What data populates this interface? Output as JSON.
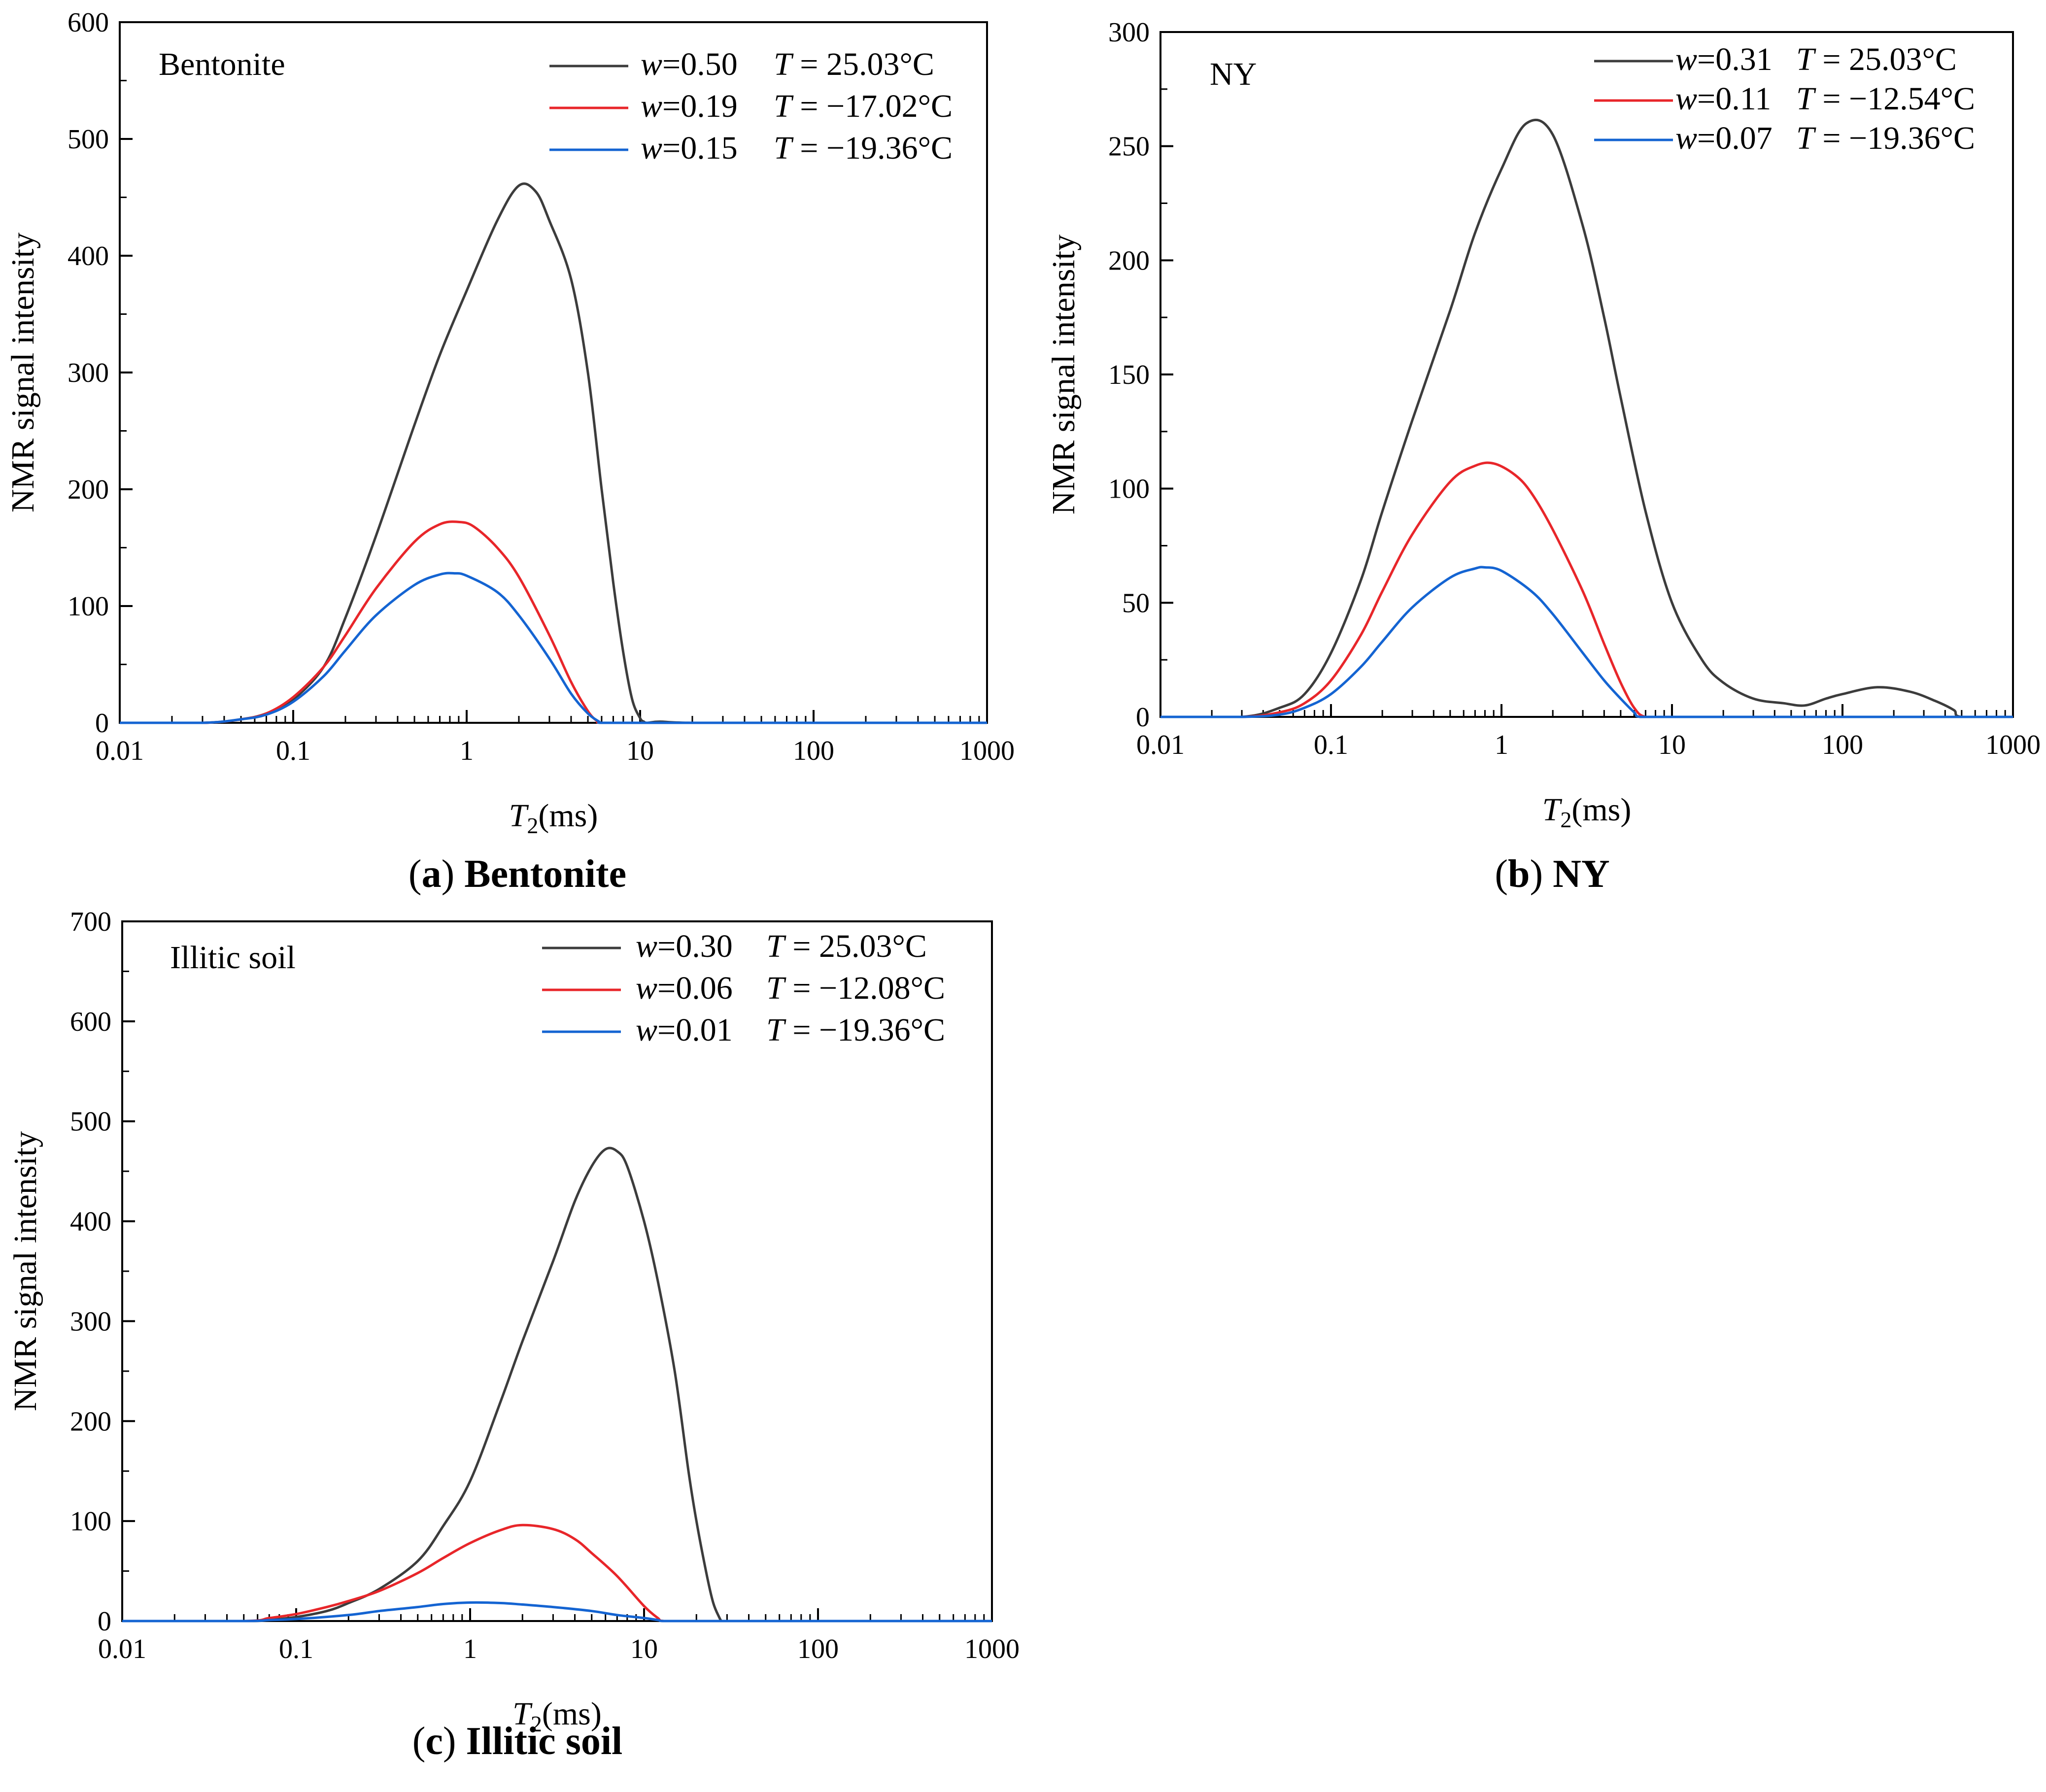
{
  "colors": {
    "black": "#3c3c3c",
    "red": "#e8262a",
    "blue": "#1464d2"
  },
  "chart_data": [
    {
      "type": "line",
      "panel": "a",
      "caption_letter": "(a)",
      "caption_name": "Bentonite",
      "sample_label": "Bentonite",
      "ylabel": "NMR signal intensity",
      "xlabel_symbol": "T",
      "xlabel_sub": "2",
      "xlabel_unit": "(ms)",
      "xscale": "log",
      "xlim": [
        0.01,
        1000
      ],
      "ylim": [
        0,
        600
      ],
      "ytick_step": 100,
      "yticks": [
        "0",
        "100",
        "200",
        "300",
        "400",
        "500",
        "600"
      ],
      "xticks": [
        "0.01",
        "0.1",
        "1",
        "10",
        "100",
        "1000"
      ],
      "series": [
        {
          "name": "w=0.50 T=25.03°C",
          "w": "0.50",
          "T": "25.03°C",
          "color": "black",
          "x": [
            0.01,
            0.03,
            0.05,
            0.07,
            0.1,
            0.15,
            0.2,
            0.3,
            0.5,
            0.7,
            1,
            1.5,
            2,
            2.5,
            3,
            4,
            5,
            6,
            7,
            8,
            9,
            10,
            10.5,
            11,
            13,
            20,
            100,
            1000
          ],
          "y": [
            0,
            0,
            3,
            8,
            20,
            48,
            90,
            160,
            255,
            315,
            370,
            430,
            460,
            455,
            430,
            380,
            300,
            200,
            120,
            60,
            20,
            4,
            1,
            0,
            1,
            0,
            0,
            0
          ]
        },
        {
          "name": "w=0.19 T=−17.02°C",
          "w": "0.19",
          "T": "−17.02°C",
          "color": "red",
          "x": [
            0.01,
            0.03,
            0.05,
            0.07,
            0.1,
            0.15,
            0.2,
            0.3,
            0.5,
            0.7,
            0.9,
            1.1,
            1.5,
            2,
            3,
            4,
            5,
            5.6,
            6,
            10,
            100,
            1000
          ],
          "y": [
            0,
            0,
            3,
            8,
            22,
            48,
            75,
            115,
            155,
            170,
            172,
            168,
            150,
            125,
            75,
            35,
            10,
            2,
            0,
            0,
            0,
            0
          ]
        },
        {
          "name": "w=0.15 T=−19.36°C",
          "w": "0.15",
          "T": "−19.36°C",
          "color": "blue",
          "x": [
            0.01,
            0.03,
            0.05,
            0.07,
            0.1,
            0.15,
            0.2,
            0.3,
            0.5,
            0.7,
            0.85,
            1,
            1.5,
            2,
            3,
            4,
            5,
            5.8,
            6,
            10,
            100,
            1000
          ],
          "y": [
            0,
            0,
            3,
            7,
            18,
            40,
            62,
            92,
            118,
            127,
            128,
            126,
            112,
            92,
            55,
            25,
            8,
            1,
            0,
            0,
            0,
            0
          ]
        }
      ]
    },
    {
      "type": "line",
      "panel": "b",
      "caption_letter": "(b)",
      "caption_name": "NY",
      "sample_label": "NY",
      "ylabel": "NMR signal intensity",
      "xlabel_symbol": "T",
      "xlabel_sub": "2",
      "xlabel_unit": "(ms)",
      "xscale": "log",
      "xlim": [
        0.01,
        1000
      ],
      "ylim": [
        0,
        300
      ],
      "ytick_step": 50,
      "yticks": [
        "0",
        "50",
        "100",
        "150",
        "200",
        "250",
        "300"
      ],
      "xticks": [
        "0.01",
        "0.1",
        "1",
        "10",
        "100",
        "1000"
      ],
      "series": [
        {
          "name": "w=0.31 T=25.03°C",
          "w": "0.31",
          "T": "25.03°C",
          "color": "black",
          "x": [
            0.01,
            0.03,
            0.05,
            0.07,
            0.1,
            0.15,
            0.2,
            0.3,
            0.5,
            0.7,
            1,
            1.4,
            2,
            3,
            4,
            5,
            7,
            10,
            15,
            20,
            30,
            45,
            60,
            80,
            100,
            160,
            250,
            350,
            450,
            500,
            1000
          ],
          "y": [
            0,
            0,
            4,
            10,
            28,
            60,
            90,
            130,
            178,
            212,
            240,
            260,
            255,
            215,
            175,
            140,
            90,
            50,
            25,
            15,
            8,
            6,
            5,
            8,
            10,
            13,
            11,
            7,
            3,
            0,
            0
          ]
        },
        {
          "name": "w=0.11 T=−12.54°C",
          "w": "0.11",
          "T": "−12.54°C",
          "color": "red",
          "x": [
            0.01,
            0.03,
            0.05,
            0.07,
            0.1,
            0.15,
            0.2,
            0.3,
            0.5,
            0.7,
            0.9,
            1.2,
            1.5,
            2,
            3,
            4,
            5,
            6,
            7,
            10,
            100,
            1000
          ],
          "y": [
            0,
            0,
            2,
            6,
            16,
            36,
            55,
            80,
            103,
            110,
            111,
            106,
            98,
            82,
            55,
            32,
            15,
            4,
            0,
            0,
            0,
            0
          ]
        },
        {
          "name": "w=0.07 T=−19.36°C",
          "w": "0.07",
          "T": "−19.36°C",
          "color": "blue",
          "x": [
            0.01,
            0.03,
            0.05,
            0.07,
            0.1,
            0.15,
            0.2,
            0.3,
            0.5,
            0.7,
            0.8,
            1,
            1.5,
            2,
            3,
            4,
            5,
            6,
            6.5,
            10,
            100,
            1000
          ],
          "y": [
            0,
            0,
            1,
            4,
            10,
            22,
            33,
            48,
            61,
            65,
            65.5,
            64,
            55,
            45,
            28,
            16,
            8,
            2,
            0,
            0,
            0,
            0
          ]
        }
      ]
    },
    {
      "type": "line",
      "panel": "c",
      "caption_letter": "(c)",
      "caption_name": "Illitic soil",
      "sample_label": "Illitic soil",
      "ylabel": "NMR signal intensity",
      "xlabel_symbol": "T",
      "xlabel_sub": "2",
      "xlabel_unit": "(ms)",
      "xscale": "log",
      "xlim": [
        0.01,
        1000
      ],
      "ylim": [
        0,
        700
      ],
      "ytick_step": 100,
      "yticks": [
        "0",
        "100",
        "200",
        "300",
        "400",
        "500",
        "600",
        "700"
      ],
      "xticks": [
        "0.01",
        "0.1",
        "1",
        "10",
        "100",
        "1000"
      ],
      "series": [
        {
          "name": "w=0.30 T=25.03°C",
          "w": "0.30",
          "T": "25.03°C",
          "color": "black",
          "x": [
            0.01,
            0.05,
            0.07,
            0.1,
            0.15,
            0.2,
            0.3,
            0.5,
            0.7,
            1,
            1.5,
            2,
            3,
            4,
            5,
            6,
            7,
            8,
            10,
            12,
            15,
            18,
            20,
            23,
            25,
            27,
            28,
            30,
            100,
            1000
          ],
          "y": [
            0,
            0,
            1,
            4,
            10,
            18,
            32,
            60,
            95,
            140,
            220,
            280,
            360,
            420,
            455,
            472,
            470,
            455,
            400,
            340,
            250,
            150,
            100,
            45,
            18,
            4,
            0,
            0,
            0,
            0
          ]
        },
        {
          "name": "w=0.06 T=−12.08°C",
          "w": "0.06",
          "T": "−12.08°C",
          "color": "red",
          "x": [
            0.01,
            0.05,
            0.07,
            0.1,
            0.15,
            0.2,
            0.3,
            0.5,
            0.7,
            1,
            1.5,
            2,
            3,
            4,
            5,
            7,
            10,
            12,
            13,
            20,
            100,
            1000
          ],
          "y": [
            0,
            0,
            3,
            7,
            14,
            20,
            30,
            48,
            63,
            78,
            91,
            96,
            92,
            82,
            68,
            45,
            15,
            3,
            0,
            0,
            0,
            0
          ]
        },
        {
          "name": "w=0.01 T=−19.36°C",
          "w": "0.01",
          "T": "−19.36°C",
          "color": "blue",
          "x": [
            0.01,
            0.05,
            0.07,
            0.1,
            0.2,
            0.3,
            0.5,
            0.7,
            1,
            1.5,
            2,
            3,
            5,
            7,
            10,
            12,
            13,
            20,
            100,
            1000
          ],
          "y": [
            0,
            0,
            1,
            2,
            6,
            10,
            14,
            17,
            18.5,
            18,
            16.5,
            14,
            10,
            6,
            3,
            1,
            0,
            0,
            0,
            0
          ]
        }
      ]
    }
  ]
}
